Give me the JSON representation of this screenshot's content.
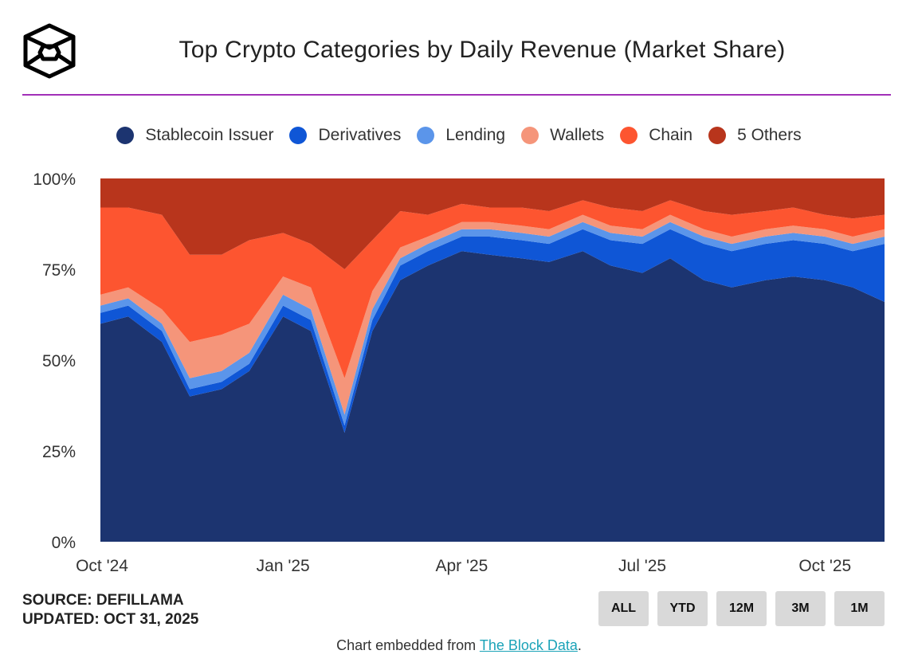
{
  "title": "Top Crypto Categories by Daily Revenue (Market Share)",
  "legend": [
    {
      "label": "Stablecoin Issuer",
      "color": "#1c3470"
    },
    {
      "label": "Derivatives",
      "color": "#0f56d6"
    },
    {
      "label": "Lending",
      "color": "#5b95ea"
    },
    {
      "label": "Wallets",
      "color": "#f5957a"
    },
    {
      "label": "Chain",
      "color": "#fd5530"
    },
    {
      "label": "5 Others",
      "color": "#b8351c"
    }
  ],
  "footer": {
    "source": "SOURCE: DEFILLAMA",
    "updated": "UPDATED: OCT 31, 2025",
    "embed_prefix": "Chart embedded from ",
    "embed_link": "The Block Data",
    "embed_suffix": "."
  },
  "buttons": [
    "ALL",
    "YTD",
    "12M",
    "3M",
    "1M"
  ],
  "chart_data": {
    "type": "area",
    "stacked": true,
    "normalized": true,
    "x_ticks": [
      "Oct '24",
      "Jan '25",
      "Apr '25",
      "Jul '25",
      "Oct '25"
    ],
    "y_ticks": [
      "0%",
      "25%",
      "50%",
      "75%",
      "100%"
    ],
    "ylim": [
      0,
      100
    ],
    "x": [
      "2024-10-01",
      "2024-10-15",
      "2024-11-01",
      "2024-11-15",
      "2024-12-01",
      "2024-12-15",
      "2025-01-01",
      "2025-01-15",
      "2025-02-01",
      "2025-02-15",
      "2025-03-01",
      "2025-03-15",
      "2025-04-01",
      "2025-04-15",
      "2025-05-01",
      "2025-05-15",
      "2025-06-01",
      "2025-06-15",
      "2025-07-01",
      "2025-07-15",
      "2025-08-01",
      "2025-08-15",
      "2025-09-01",
      "2025-09-15",
      "2025-10-01",
      "2025-10-15",
      "2025-10-31"
    ],
    "series": [
      {
        "name": "Stablecoin Issuer",
        "values": [
          60,
          62,
          55,
          40,
          42,
          47,
          62,
          58,
          30,
          58,
          72,
          76,
          80,
          79,
          78,
          77,
          80,
          76,
          74,
          78,
          72,
          70,
          72,
          73,
          72,
          70,
          66
        ]
      },
      {
        "name": "Derivatives",
        "values": [
          3,
          3,
          3,
          2,
          2,
          2,
          3,
          3,
          2,
          3,
          4,
          4,
          4,
          5,
          5,
          5,
          6,
          7,
          8,
          8,
          10,
          10,
          10,
          10,
          10,
          10,
          16
        ]
      },
      {
        "name": "Lending",
        "values": [
          2,
          2,
          2,
          3,
          3,
          3,
          3,
          3,
          3,
          3,
          2,
          2,
          2,
          2,
          2,
          2,
          2,
          2,
          2,
          2,
          2,
          2,
          2,
          2,
          2,
          2,
          2
        ]
      },
      {
        "name": "Wallets",
        "values": [
          3,
          3,
          4,
          10,
          10,
          8,
          5,
          6,
          10,
          5,
          3,
          2,
          2,
          2,
          2,
          2,
          2,
          2,
          2,
          2,
          2,
          2,
          2,
          2,
          2,
          2,
          2
        ]
      },
      {
        "name": "Chain",
        "values": [
          24,
          22,
          26,
          24,
          22,
          23,
          12,
          12,
          30,
          14,
          10,
          6,
          5,
          4,
          5,
          5,
          4,
          5,
          5,
          4,
          5,
          6,
          5,
          5,
          4,
          5,
          4
        ]
      },
      {
        "name": "5 Others",
        "values": [
          8,
          8,
          10,
          21,
          21,
          17,
          15,
          18,
          25,
          17,
          9,
          10,
          7,
          8,
          8,
          9,
          6,
          8,
          9,
          6,
          9,
          10,
          9,
          8,
          10,
          11,
          10
        ]
      }
    ]
  }
}
